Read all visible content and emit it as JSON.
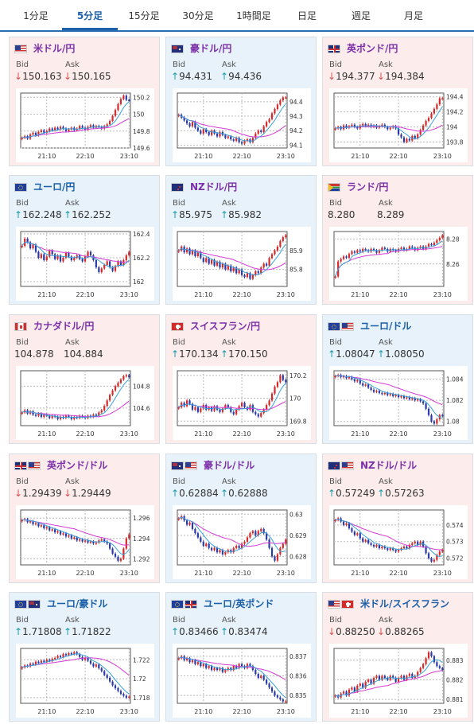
{
  "tabs": [
    {
      "label": "1分足",
      "active": false
    },
    {
      "label": "5分足",
      "active": true
    },
    {
      "label": "15分足",
      "active": false
    },
    {
      "label": "30分足",
      "active": false
    },
    {
      "label": "1時間足",
      "active": false
    },
    {
      "label": "日足",
      "active": false
    },
    {
      "label": "週足",
      "active": false
    },
    {
      "label": "月足",
      "active": false
    }
  ],
  "bid_label": "Bid",
  "ask_label": "Ask",
  "colors": {
    "up": "#1a9ba8",
    "down": "#d9534f",
    "candle_up": "#d42a2a",
    "candle_down": "#2a3aa8",
    "ma_short": "#3aa0d8",
    "ma_long": "#d43ad4"
  },
  "chart_data": [
    {
      "type": "candlestick",
      "pair": "米ドル/円",
      "flag": "us",
      "title_color": "purple",
      "bg": "pink",
      "bid": "150.163",
      "ask": "150.165",
      "bid_arrow": "↓",
      "ask_arrow": "↓",
      "direction": "down",
      "ylim": [
        149.6,
        150.25
      ],
      "yticks": [
        "150.2",
        "150",
        "149.8",
        "149.6"
      ],
      "ytick_values": [
        150.2,
        150.0,
        149.8,
        149.6
      ],
      "xticks": [
        "21:10",
        "22:10",
        "23:10"
      ],
      "closes": [
        149.72,
        149.74,
        149.71,
        149.76,
        149.78,
        149.75,
        149.79,
        149.81,
        149.78,
        149.8,
        149.83,
        149.81,
        149.84,
        149.82,
        149.85,
        149.83,
        149.8,
        149.82,
        149.84,
        149.81,
        149.83,
        149.86,
        149.84,
        149.82,
        149.85,
        149.87,
        149.84,
        149.86,
        149.85,
        149.83,
        149.86,
        149.88,
        149.92,
        149.98,
        150.05,
        150.12,
        150.18,
        150.22,
        150.17,
        150.16
      ]
    },
    {
      "type": "candlestick",
      "pair": "豪ドル/円",
      "flag": "au",
      "title_color": "purple",
      "bg": "blue",
      "bid": "94.431",
      "ask": "94.436",
      "bid_arrow": "↑",
      "ask_arrow": "↑",
      "direction": "up",
      "ylim": [
        94.08,
        94.46
      ],
      "yticks": [
        "94.4",
        "94.3",
        "94.2",
        "94.1"
      ],
      "ytick_values": [
        94.4,
        94.3,
        94.2,
        94.1
      ],
      "xticks": [
        "21:10",
        "22:10",
        "23:10"
      ],
      "closes": [
        94.31,
        94.29,
        94.27,
        94.25,
        94.23,
        94.26,
        94.22,
        94.2,
        94.18,
        94.21,
        94.19,
        94.17,
        94.2,
        94.18,
        94.16,
        94.19,
        94.17,
        94.15,
        94.16,
        94.14,
        94.13,
        94.15,
        94.12,
        94.11,
        94.13,
        94.14,
        94.12,
        94.15,
        94.18,
        94.2,
        94.19,
        94.23,
        94.26,
        94.28,
        94.32,
        94.35,
        94.38,
        94.41,
        94.43,
        94.43
      ]
    },
    {
      "type": "candlestick",
      "pair": "英ポンド/円",
      "flag": "gb",
      "title_color": "purple",
      "bg": "pink",
      "bid": "194.377",
      "ask": "194.384",
      "bid_arrow": "↓",
      "ask_arrow": "↓",
      "direction": "down",
      "ylim": [
        193.72,
        194.45
      ],
      "yticks": [
        "194.4",
        "194.2",
        "194",
        "193.8"
      ],
      "ytick_values": [
        194.4,
        194.2,
        194.0,
        193.8
      ],
      "xticks": [
        "21:10",
        "22:10",
        "23:10"
      ],
      "closes": [
        193.98,
        194.0,
        193.97,
        194.02,
        193.99,
        194.01,
        194.03,
        194.0,
        193.98,
        194.02,
        194.04,
        194.01,
        194.03,
        194.0,
        194.02,
        193.99,
        194.01,
        194.03,
        194.0,
        193.97,
        193.99,
        194.01,
        193.98,
        193.9,
        193.86,
        193.8,
        193.84,
        193.82,
        193.88,
        193.85,
        193.9,
        193.96,
        194.02,
        194.08,
        194.12,
        194.18,
        194.24,
        194.3,
        194.38,
        194.38
      ]
    },
    {
      "type": "candlestick",
      "pair": "ユーロ/円",
      "flag": "eu",
      "title_color": "blue",
      "bg": "blue",
      "bid": "162.248",
      "ask": "162.252",
      "bid_arrow": "↑",
      "ask_arrow": "↑",
      "direction": "up",
      "ylim": [
        161.96,
        162.42
      ],
      "yticks": [
        "162.4",
        "162.2",
        "162"
      ],
      "ytick_values": [
        162.4,
        162.2,
        162.0
      ],
      "xticks": [
        "21:10",
        "22:10",
        "23:10"
      ],
      "closes": [
        162.3,
        162.36,
        162.33,
        162.28,
        162.31,
        162.25,
        162.2,
        162.23,
        162.18,
        162.21,
        162.26,
        162.23,
        162.19,
        162.22,
        162.17,
        162.2,
        162.24,
        162.21,
        162.18,
        162.2,
        162.22,
        162.19,
        162.17,
        162.21,
        162.25,
        162.22,
        162.18,
        162.12,
        162.08,
        162.11,
        162.14,
        162.17,
        162.12,
        162.09,
        162.13,
        162.17,
        162.14,
        162.18,
        162.22,
        162.25
      ]
    },
    {
      "type": "candlestick",
      "pair": "NZドル/円",
      "flag": "nz",
      "title_color": "purple",
      "bg": "blue",
      "bid": "85.975",
      "ask": "85.982",
      "bid_arrow": "↑",
      "ask_arrow": "↑",
      "direction": "up",
      "ylim": [
        85.71,
        86.0
      ],
      "yticks": [
        "85.9",
        "85.8"
      ],
      "ytick_values": [
        85.9,
        85.8
      ],
      "xticks": [
        "21:10",
        "22:10",
        "23:10"
      ],
      "closes": [
        85.9,
        85.92,
        85.89,
        85.91,
        85.88,
        85.9,
        85.87,
        85.89,
        85.86,
        85.84,
        85.86,
        85.83,
        85.85,
        85.82,
        85.84,
        85.81,
        85.83,
        85.8,
        85.82,
        85.79,
        85.81,
        85.78,
        85.8,
        85.77,
        85.76,
        85.78,
        85.75,
        85.77,
        85.79,
        85.78,
        85.81,
        85.83,
        85.82,
        85.86,
        85.88,
        85.9,
        85.92,
        85.95,
        85.97,
        85.98
      ]
    },
    {
      "type": "candlestick",
      "pair": "ランド/円",
      "flag": "za",
      "title_color": "purple",
      "bg": "pink",
      "bid": "8.280",
      "ask": "8.289",
      "bid_arrow": "",
      "ask_arrow": "",
      "direction": "none",
      "ylim": [
        8.242,
        8.286
      ],
      "yticks": [
        "8.28",
        "8.26"
      ],
      "ytick_values": [
        8.28,
        8.26
      ],
      "xticks": [
        "21:10",
        "22:10",
        "23:10"
      ],
      "closes": [
        8.25,
        8.262,
        8.264,
        8.266,
        8.265,
        8.268,
        8.27,
        8.269,
        8.271,
        8.27,
        8.272,
        8.271,
        8.27,
        8.272,
        8.271,
        8.269,
        8.271,
        8.273,
        8.272,
        8.27,
        8.272,
        8.271,
        8.27,
        8.272,
        8.273,
        8.271,
        8.272,
        8.274,
        8.273,
        8.271,
        8.273,
        8.274,
        8.272,
        8.274,
        8.276,
        8.275,
        8.277,
        8.279,
        8.281,
        8.283
      ]
    },
    {
      "type": "candlestick",
      "pair": "カナダドル/円",
      "flag": "ca",
      "title_color": "purple",
      "bg": "pink",
      "bid": "104.878",
      "ask": "104.884",
      "bid_arrow": "",
      "ask_arrow": "",
      "direction": "none",
      "ylim": [
        104.44,
        104.94
      ],
      "yticks": [
        "104.8",
        "104.6"
      ],
      "ytick_values": [
        104.8,
        104.6
      ],
      "xticks": [
        "21:10",
        "22:10",
        "23:10"
      ],
      "closes": [
        104.56,
        104.58,
        104.55,
        104.57,
        104.54,
        104.53,
        104.55,
        104.52,
        104.54,
        104.53,
        104.51,
        104.53,
        104.52,
        104.5,
        104.52,
        104.51,
        104.53,
        104.52,
        104.5,
        104.52,
        104.51,
        104.53,
        104.52,
        104.51,
        104.53,
        104.52,
        104.54,
        104.53,
        104.56,
        104.58,
        104.62,
        104.67,
        104.72,
        104.76,
        104.8,
        104.83,
        104.86,
        104.89,
        104.9,
        104.88
      ]
    },
    {
      "type": "candlestick",
      "pair": "スイスフラン/円",
      "flag": "ch",
      "title_color": "purple",
      "bg": "pink",
      "bid": "170.134",
      "ask": "170.150",
      "bid_arrow": "↑",
      "ask_arrow": "↑",
      "direction": "up",
      "ylim": [
        169.76,
        170.24
      ],
      "yticks": [
        "170.2",
        "170",
        "169.8"
      ],
      "ytick_values": [
        170.2,
        170.0,
        169.8
      ],
      "xticks": [
        "21:10",
        "22:10",
        "23:10"
      ],
      "closes": [
        169.92,
        169.96,
        169.93,
        169.98,
        169.95,
        169.9,
        169.92,
        169.88,
        169.91,
        169.94,
        169.9,
        169.92,
        169.89,
        169.93,
        169.9,
        169.88,
        169.91,
        169.94,
        169.92,
        169.88,
        169.86,
        169.9,
        169.93,
        169.96,
        169.92,
        169.9,
        169.94,
        169.88,
        169.86,
        169.84,
        169.87,
        169.9,
        169.94,
        169.98,
        170.04,
        170.1,
        170.14,
        170.2,
        170.16,
        170.14
      ]
    },
    {
      "type": "candlestick",
      "pair": "ユーロ/ドル",
      "flag": "eu-us",
      "title_color": "blue",
      "bg": "blue",
      "bid": "1.08047",
      "ask": "1.08050",
      "bid_arrow": "↑",
      "ask_arrow": "↑",
      "direction": "up",
      "ylim": [
        1.0796,
        1.0848
      ],
      "yticks": [
        "1.084",
        "1.082",
        "1.08"
      ],
      "ytick_values": [
        1.084,
        1.082,
        1.08
      ],
      "xticks": [
        "21:10",
        "22:10",
        "23:10"
      ],
      "closes": [
        1.0843,
        1.0844,
        1.0842,
        1.0843,
        1.0841,
        1.0842,
        1.084,
        1.0838,
        1.0839,
        1.0836,
        1.0834,
        1.0835,
        1.0832,
        1.083,
        1.0828,
        1.0829,
        1.0827,
        1.0826,
        1.0827,
        1.0825,
        1.0826,
        1.0824,
        1.0825,
        1.0823,
        1.0824,
        1.0822,
        1.0823,
        1.0821,
        1.0822,
        1.082,
        1.0821,
        1.0819,
        1.0817,
        1.0812,
        1.0806,
        1.08,
        1.0798,
        1.0802,
        1.0806,
        1.0805
      ]
    },
    {
      "type": "candlestick",
      "pair": "英ポンド/ドル",
      "flag": "gb-us",
      "title_color": "purple",
      "bg": "pink",
      "bid": "1.29439",
      "ask": "1.29449",
      "bid_arrow": "↓",
      "ask_arrow": "↓",
      "direction": "down",
      "ylim": [
        1.2914,
        1.2968
      ],
      "yticks": [
        "1.296",
        "1.294",
        "1.292"
      ],
      "ytick_values": [
        1.296,
        1.294,
        1.292
      ],
      "xticks": [
        "21:10",
        "22:10",
        "23:10"
      ],
      "closes": [
        1.2958,
        1.2959,
        1.2956,
        1.2957,
        1.2954,
        1.2955,
        1.2952,
        1.2953,
        1.295,
        1.2951,
        1.2948,
        1.2949,
        1.2946,
        1.2947,
        1.2944,
        1.2945,
        1.2942,
        1.2943,
        1.294,
        1.2941,
        1.2938,
        1.2939,
        1.2937,
        1.2938,
        1.2936,
        1.2937,
        1.2935,
        1.2936,
        1.2938,
        1.2939,
        1.2937,
        1.2935,
        1.293,
        1.2925,
        1.2922,
        1.2918,
        1.292,
        1.293,
        1.294,
        1.2944
      ]
    },
    {
      "type": "candlestick",
      "pair": "豪ドル/ドル",
      "flag": "au-us",
      "title_color": "purple",
      "bg": "blue",
      "bid": "0.62884",
      "ask": "0.62888",
      "bid_arrow": "↑",
      "ask_arrow": "↑",
      "direction": "up",
      "ylim": [
        0.6276,
        0.6302
      ],
      "yticks": [
        "0.63",
        "0.629",
        "0.628"
      ],
      "ytick_values": [
        0.63,
        0.629,
        0.628
      ],
      "xticks": [
        "21:10",
        "22:10",
        "23:10"
      ],
      "closes": [
        0.6298,
        0.6299,
        0.6297,
        0.6295,
        0.6296,
        0.6293,
        0.6291,
        0.6289,
        0.6287,
        0.6285,
        0.6286,
        0.6284,
        0.6283,
        0.6284,
        0.6282,
        0.6283,
        0.6281,
        0.6282,
        0.6283,
        0.6282,
        0.6284,
        0.6285,
        0.6284,
        0.6286,
        0.6287,
        0.6289,
        0.6291,
        0.6292,
        0.629,
        0.6292,
        0.6293,
        0.6291,
        0.6288,
        0.6284,
        0.628,
        0.6278,
        0.6281,
        0.6284,
        0.6286,
        0.6288
      ]
    },
    {
      "type": "candlestick",
      "pair": "NZドル/ドル",
      "flag": "nz-us",
      "title_color": "purple",
      "bg": "pink",
      "bid": "0.57249",
      "ask": "0.57263",
      "bid_arrow": "↑",
      "ask_arrow": "↑",
      "direction": "up",
      "ylim": [
        0.5716,
        0.5749
      ],
      "yticks": [
        "0.574",
        "0.573",
        "0.572"
      ],
      "ytick_values": [
        0.574,
        0.573,
        0.572
      ],
      "xticks": [
        "21:10",
        "22:10",
        "23:10"
      ],
      "closes": [
        0.5743,
        0.5744,
        0.5742,
        0.574,
        0.5741,
        0.5738,
        0.5736,
        0.5734,
        0.5735,
        0.5732,
        0.573,
        0.5731,
        0.5729,
        0.5728,
        0.5727,
        0.5728,
        0.5726,
        0.5727,
        0.5726,
        0.5725,
        0.5726,
        0.5725,
        0.5724,
        0.5725,
        0.5726,
        0.5727,
        0.5726,
        0.5728,
        0.5729,
        0.573,
        0.5728,
        0.573,
        0.5727,
        0.5723,
        0.572,
        0.5718,
        0.5719,
        0.5722,
        0.5724,
        0.5725
      ]
    },
    {
      "type": "candlestick",
      "pair": "ユーロ/豪ドル",
      "flag": "eu-au",
      "title_color": "blue",
      "bg": "blue",
      "bid": "1.71808",
      "ask": "1.71822",
      "bid_arrow": "↑",
      "ask_arrow": "↑",
      "direction": "up",
      "ylim": [
        1.7174,
        1.7232
      ],
      "yticks": [
        "1.722",
        "1.72",
        "1.718"
      ],
      "ytick_values": [
        1.722,
        1.72,
        1.718
      ],
      "xticks": [
        "21:10",
        "22:10",
        "23:10"
      ],
      "closes": [
        1.7212,
        1.7214,
        1.7213,
        1.7216,
        1.7215,
        1.7218,
        1.7217,
        1.7219,
        1.7218,
        1.722,
        1.7219,
        1.7221,
        1.7222,
        1.7224,
        1.7223,
        1.7226,
        1.7225,
        1.7227,
        1.7226,
        1.7228,
        1.7226,
        1.7223,
        1.722,
        1.7222,
        1.7219,
        1.7216,
        1.7213,
        1.7215,
        1.7211,
        1.7208,
        1.7204,
        1.7201,
        1.7197,
        1.7193,
        1.719,
        1.7187,
        1.7184,
        1.7182,
        1.718,
        1.7181
      ]
    },
    {
      "type": "candlestick",
      "pair": "ユーロ/英ポンド",
      "flag": "eu-gb",
      "title_color": "blue",
      "bg": "blue",
      "bid": "0.83466",
      "ask": "0.83474",
      "bid_arrow": "↑",
      "ask_arrow": "↑",
      "direction": "up",
      "ylim": [
        0.8346,
        0.8374
      ],
      "yticks": [
        "0.837",
        "0.836",
        "0.835"
      ],
      "ytick_values": [
        0.837,
        0.836,
        0.835
      ],
      "xticks": [
        "21:10",
        "22:10",
        "23:10"
      ],
      "closes": [
        0.8369,
        0.837,
        0.8368,
        0.8369,
        0.8367,
        0.8368,
        0.8366,
        0.8367,
        0.8365,
        0.8366,
        0.8364,
        0.8365,
        0.8363,
        0.8364,
        0.8363,
        0.8364,
        0.8362,
        0.8363,
        0.8364,
        0.8363,
        0.8365,
        0.8364,
        0.8366,
        0.8365,
        0.8364,
        0.8366,
        0.8365,
        0.8363,
        0.8361,
        0.8359,
        0.836,
        0.8358,
        0.8356,
        0.8354,
        0.8352,
        0.835,
        0.8349,
        0.8348,
        0.8347,
        0.8347
      ]
    },
    {
      "type": "candlestick",
      "pair": "米ドル/スイスフラン",
      "flag": "us-ch",
      "title_color": "blue",
      "bg": "pink",
      "bid": "0.88250",
      "ask": "0.88265",
      "bid_arrow": "↓",
      "ask_arrow": "↓",
      "direction": "down",
      "ylim": [
        0.8808,
        0.8836
      ],
      "yticks": [
        "0.883",
        "0.882",
        "0.881"
      ],
      "ytick_values": [
        0.883,
        0.882,
        0.881
      ],
      "xticks": [
        "21:10",
        "22:10",
        "23:10"
      ],
      "closes": [
        0.8812,
        0.8811,
        0.8813,
        0.8814,
        0.8812,
        0.8815,
        0.8816,
        0.8814,
        0.8817,
        0.8818,
        0.8816,
        0.8819,
        0.882,
        0.8818,
        0.8821,
        0.8822,
        0.882,
        0.8822,
        0.8821,
        0.882,
        0.8822,
        0.8821,
        0.8819,
        0.8821,
        0.8822,
        0.882,
        0.8822,
        0.8823,
        0.8821,
        0.8822,
        0.8824,
        0.8826,
        0.8828,
        0.8831,
        0.8834,
        0.8832,
        0.8829,
        0.8827,
        0.8826,
        0.8825
      ]
    }
  ]
}
